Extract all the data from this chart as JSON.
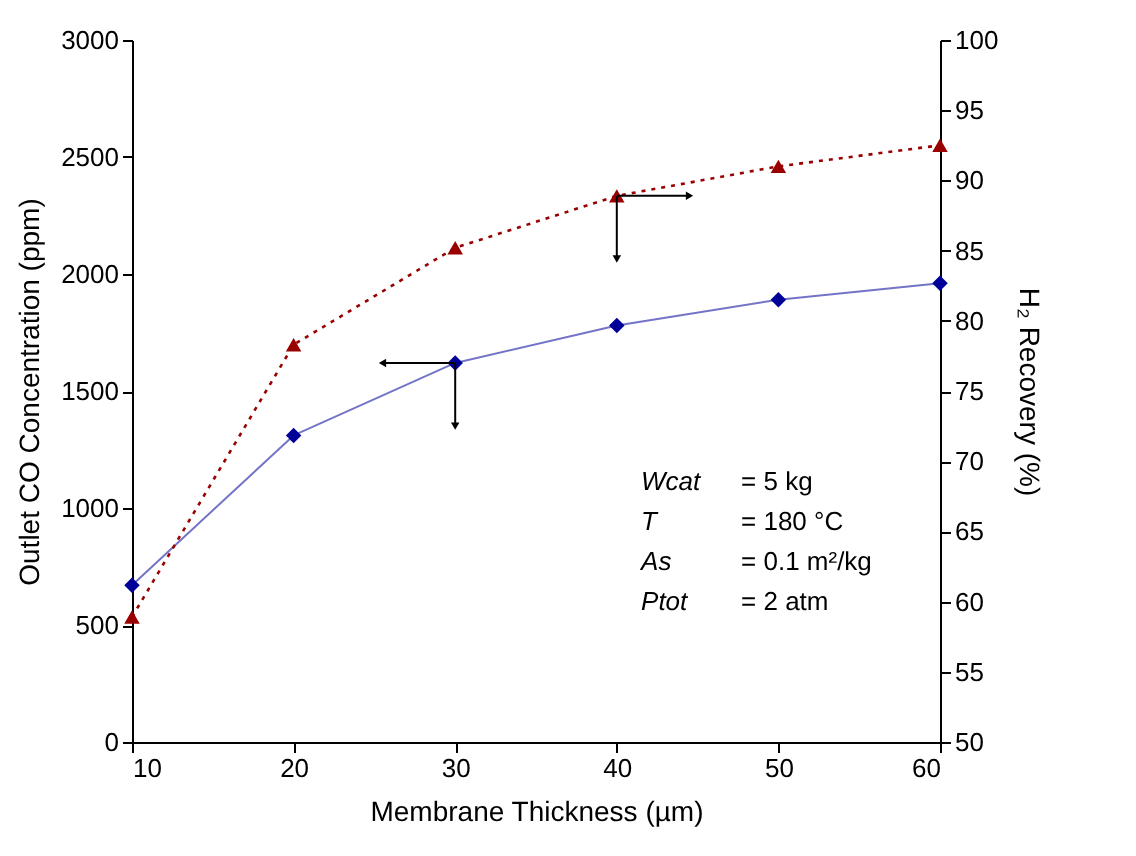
{
  "chart_data": {
    "type": "line",
    "x": [
      10,
      20,
      30,
      40,
      50,
      60
    ],
    "series": [
      {
        "color": "#000099",
        "marker": "diamond",
        "line_style": "solid",
        "values": [
          670,
          1310,
          1620,
          1780,
          1890,
          1960
        ]
      },
      {
        "color": "#990000",
        "marker": "triangle",
        "line_style": "dotted",
        "axis": "y2",
        "values": [
          58.9,
          78.3,
          85.2,
          88.9,
          91.0,
          92.5
        ]
      }
    ],
    "xlabel": "Membrane Thickness (µm)",
    "ylabel": "Outlet CO Concentration (ppm)",
    "y2label": "H₂ Recovery (%)",
    "xlim": [
      10,
      60
    ],
    "xticks": [
      10,
      20,
      30,
      40,
      50,
      60
    ],
    "ylim": [
      0,
      3000
    ],
    "yticks": [
      0,
      500,
      1000,
      1500,
      2000,
      2500,
      3000
    ],
    "y2lim": [
      50,
      100
    ],
    "y2ticks": [
      50,
      55,
      60,
      65,
      70,
      75,
      80,
      85,
      90,
      95,
      100
    ],
    "annotations": [
      "Wcat = 5 kg",
      "T = 180 °C",
      "As = 0.1 m²/kg",
      "Ptot = 2 atm"
    ],
    "grid": false,
    "legend": false
  }
}
